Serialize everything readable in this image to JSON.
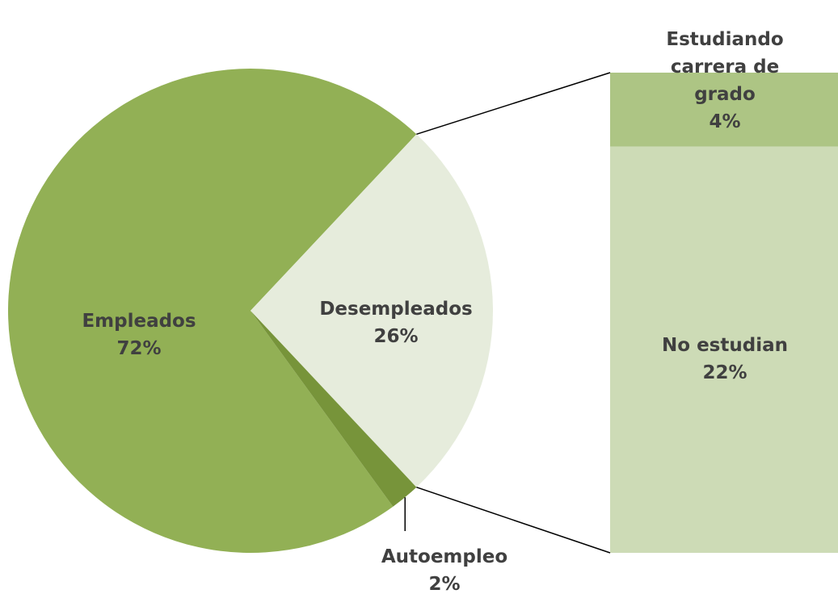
{
  "chart_data": {
    "type": "pie_bar",
    "categories": [
      "Empleados",
      "Desempleados",
      "Autoempleo"
    ],
    "values": [
      72,
      26,
      2
    ],
    "value_labels": [
      "72%",
      "26%",
      "2%"
    ],
    "colors": [
      "#92b055",
      "#e6ecdc",
      "#77943a"
    ],
    "bar": {
      "categories": [
        "Estudiando carrera de grado",
        "No estudian"
      ],
      "values": [
        4,
        22
      ],
      "value_labels": [
        "4%",
        "22%"
      ],
      "colors": [
        "#adc584",
        "#cddbb6"
      ]
    }
  }
}
